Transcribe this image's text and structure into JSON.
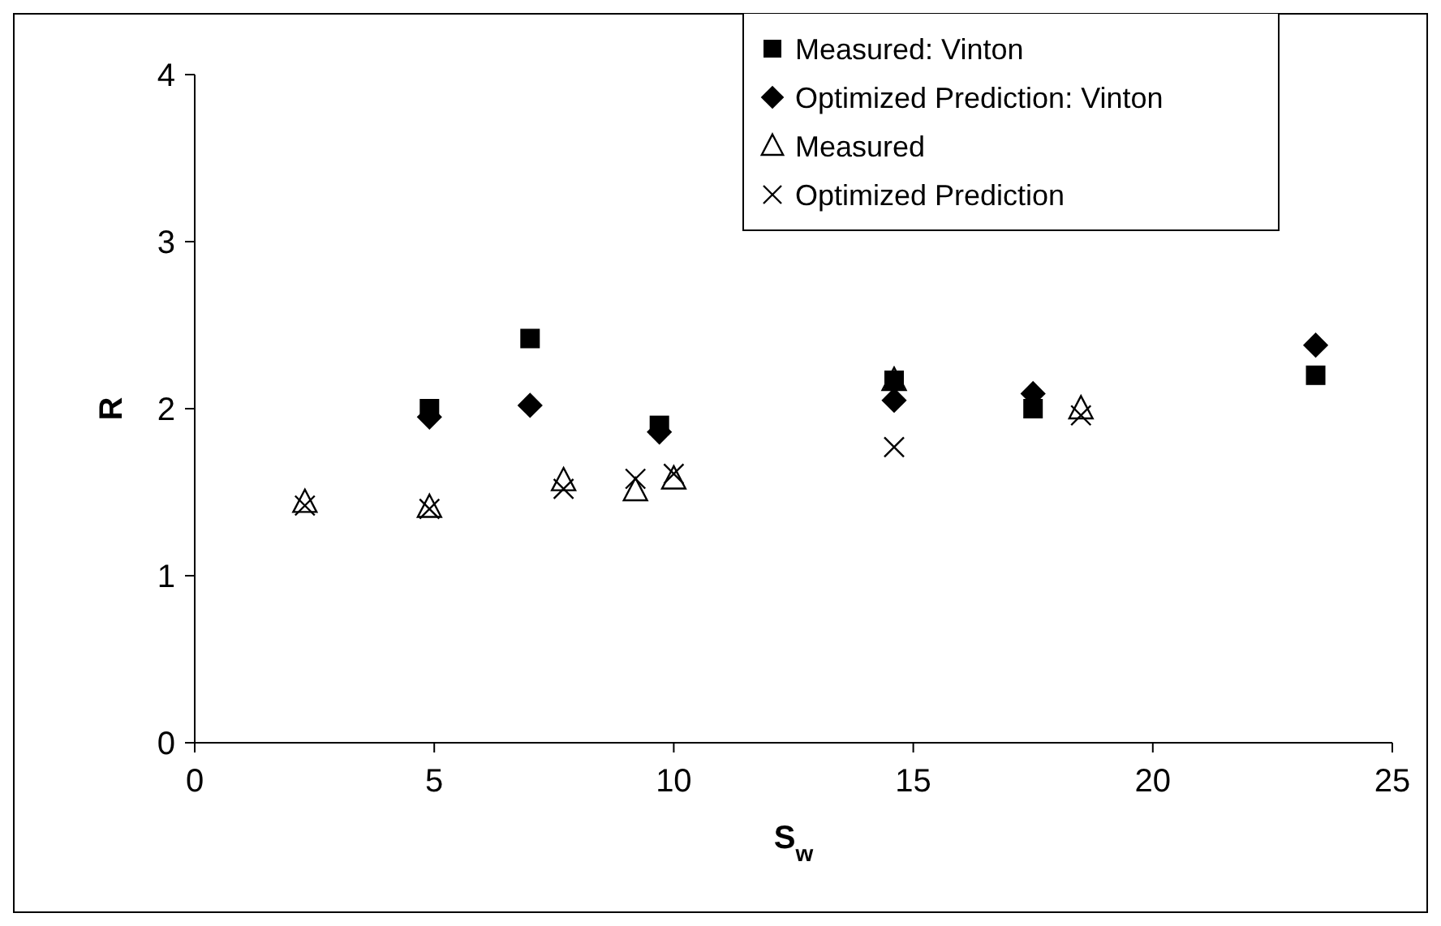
{
  "chart_data": {
    "type": "scatter",
    "xlabel": "S$_{w}$",
    "ylabel": "R",
    "xlim": [
      0,
      25
    ],
    "xticks": [
      0,
      5,
      10,
      15,
      20,
      25
    ],
    "ylim": [
      0,
      4
    ],
    "yticks": [
      0,
      1,
      2,
      3,
      4
    ],
    "grid": false,
    "legend": "top right",
    "series": [
      {
        "name": "Measured: Vinton",
        "color": "#000000",
        "marker": "square",
        "x": [
          4.9,
          7,
          9.7,
          14.6,
          17.5,
          23.4
        ],
        "values": [
          2.0,
          2.42,
          1.9,
          2.17,
          2.0,
          2.2
        ]
      },
      {
        "name": "Optimized Prediction: Vinton",
        "color": "#000000",
        "marker": "diamond",
        "x": [
          4.9,
          7,
          9.7,
          14.6,
          17.5,
          23.4
        ],
        "values": [
          1.95,
          2.02,
          1.86,
          2.05,
          2.09,
          2.38
        ]
      },
      {
        "name": "Measured",
        "color": "#000000",
        "marker": "triangle",
        "x": [
          2.3,
          4.9,
          7.7,
          9.2,
          10.0,
          14.6,
          18.5
        ],
        "values": [
          1.44,
          1.41,
          1.57,
          1.51,
          1.58,
          2.17,
          2.0
        ]
      },
      {
        "name": "Optimized Prediction",
        "color": "#000000",
        "marker": "cross",
        "x": [
          2.3,
          4.9,
          7.7,
          9.2,
          10.0,
          14.6,
          18.5
        ],
        "values": [
          1.42,
          1.4,
          1.52,
          1.58,
          1.61,
          1.77,
          1.96
        ]
      }
    ]
  }
}
